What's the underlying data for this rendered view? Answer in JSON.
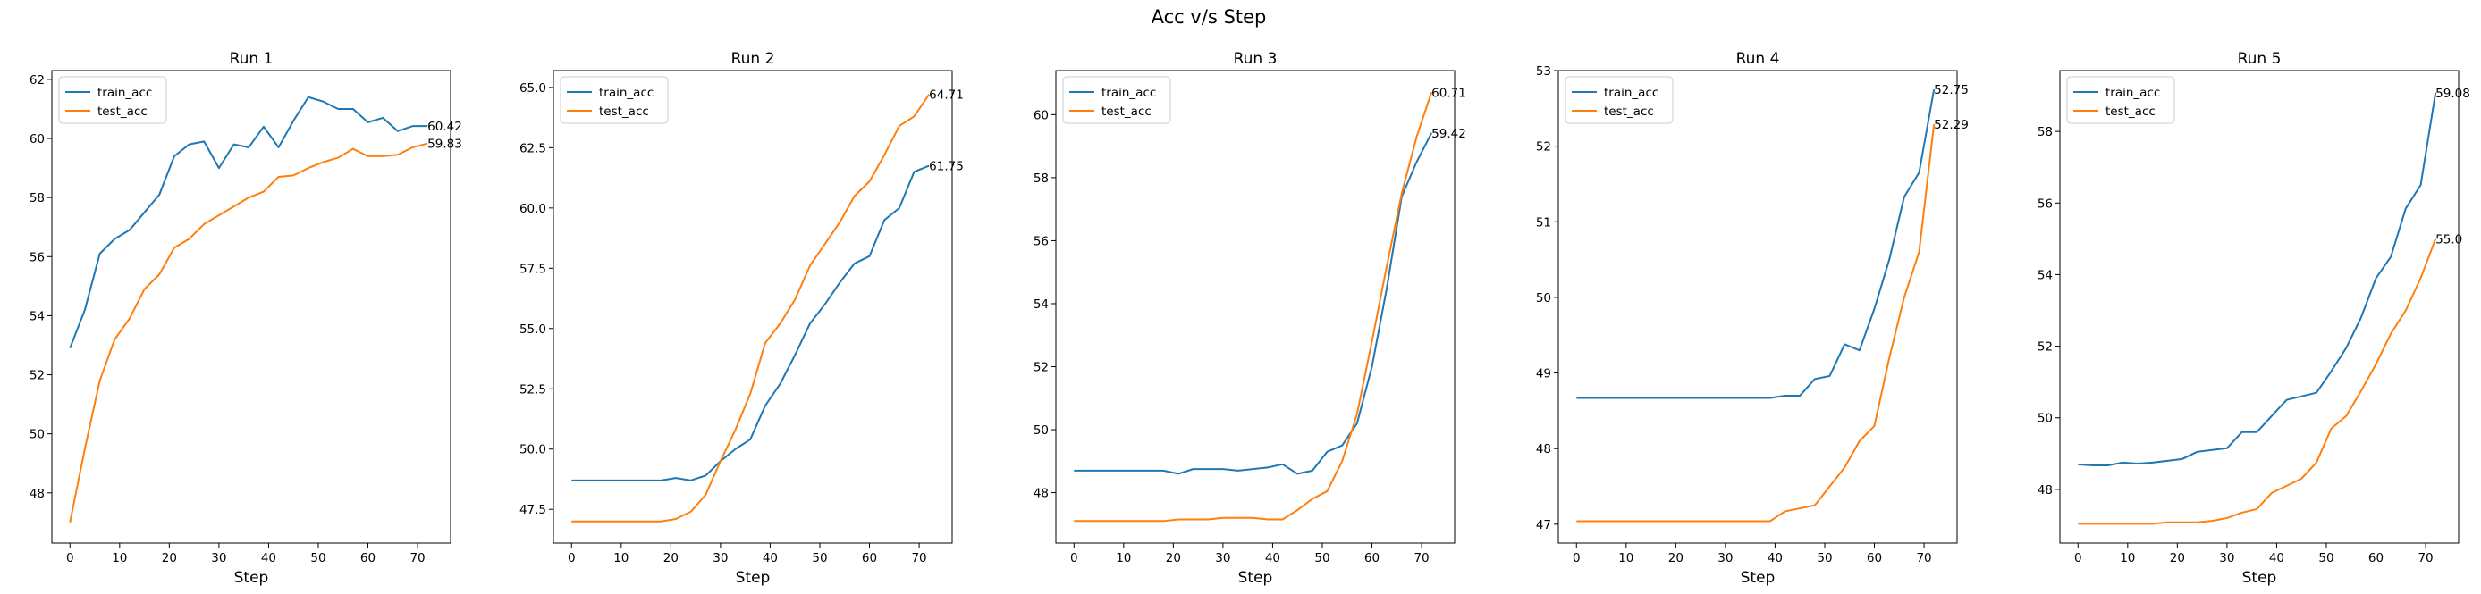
{
  "figure": {
    "title": "Acc v/s Step"
  },
  "colors": {
    "train_acc": "#1f77b4",
    "test_acc": "#ff7f0e"
  },
  "chart_data": [
    {
      "type": "line",
      "title": "Run 1",
      "xlabel": "Step",
      "ylabel": "",
      "xlim": [
        -3.65,
        76.65
      ],
      "ylim": [
        46.3,
        62.3
      ],
      "xticks": [
        0,
        10,
        20,
        30,
        40,
        50,
        60,
        70
      ],
      "yticks": [
        48,
        50,
        52,
        54,
        56,
        58,
        60,
        62
      ],
      "legend": "top-left",
      "grid": false,
      "x": [
        0,
        3,
        6,
        9,
        12,
        15,
        18,
        21,
        24,
        27,
        30,
        33,
        36,
        39,
        42,
        45,
        48,
        51,
        54,
        57,
        60,
        63,
        66,
        69,
        72
      ],
      "series": [
        {
          "name": "train_acc",
          "end_label": "60.42",
          "values": [
            52.9,
            54.2,
            56.1,
            56.6,
            56.9,
            57.5,
            58.1,
            59.4,
            59.8,
            59.9,
            59.0,
            59.8,
            59.7,
            60.4,
            59.7,
            60.6,
            61.4,
            61.25,
            61.0,
            61.0,
            60.55,
            60.7,
            60.25,
            60.42,
            60.42
          ]
        },
        {
          "name": "test_acc",
          "end_label": "59.83",
          "values": [
            47.0,
            49.5,
            51.8,
            53.2,
            53.9,
            54.9,
            55.4,
            56.3,
            56.6,
            57.1,
            57.4,
            57.7,
            58.0,
            58.2,
            58.7,
            58.75,
            59.0,
            59.2,
            59.35,
            59.65,
            59.4,
            59.4,
            59.45,
            59.7,
            59.83
          ]
        }
      ]
    },
    {
      "type": "line",
      "title": "Run 2",
      "xlabel": "Step",
      "ylabel": "",
      "xlim": [
        -3.65,
        76.65
      ],
      "ylim": [
        46.1,
        65.7
      ],
      "xticks": [
        0,
        10,
        20,
        30,
        40,
        50,
        60,
        70
      ],
      "yticks": [
        47.5,
        50.0,
        52.5,
        55.0,
        57.5,
        60.0,
        62.5,
        65.0
      ],
      "legend": "top-left",
      "grid": false,
      "x": [
        0,
        3,
        6,
        9,
        12,
        15,
        18,
        21,
        24,
        27,
        30,
        33,
        36,
        39,
        42,
        45,
        48,
        51,
        54,
        57,
        60,
        63,
        66,
        69,
        72
      ],
      "series": [
        {
          "name": "train_acc",
          "end_label": "61.75",
          "values": [
            48.7,
            48.7,
            48.7,
            48.7,
            48.7,
            48.7,
            48.7,
            48.8,
            48.7,
            48.9,
            49.5,
            50.0,
            50.4,
            51.8,
            52.7,
            53.9,
            55.2,
            56.0,
            56.9,
            57.7,
            58.0,
            59.5,
            60.0,
            61.5,
            61.75
          ]
        },
        {
          "name": "test_acc",
          "end_label": "64.71",
          "values": [
            47.0,
            47.0,
            47.0,
            47.0,
            47.0,
            47.0,
            47.0,
            47.1,
            47.4,
            48.1,
            49.5,
            50.8,
            52.3,
            54.4,
            55.2,
            56.2,
            57.6,
            58.5,
            59.4,
            60.5,
            61.1,
            62.2,
            63.4,
            63.8,
            64.71
          ]
        }
      ]
    },
    {
      "type": "line",
      "title": "Run 3",
      "xlabel": "Step",
      "ylabel": "",
      "xlim": [
        -3.65,
        76.65
      ],
      "ylim": [
        46.4,
        61.4
      ],
      "xticks": [
        0,
        10,
        20,
        30,
        40,
        50,
        60,
        70
      ],
      "yticks": [
        48,
        50,
        52,
        54,
        56,
        58,
        60
      ],
      "legend": "top-left",
      "grid": false,
      "x": [
        0,
        3,
        6,
        9,
        12,
        15,
        18,
        21,
        24,
        27,
        30,
        33,
        36,
        39,
        42,
        45,
        48,
        51,
        54,
        57,
        60,
        63,
        66,
        69,
        72
      ],
      "series": [
        {
          "name": "train_acc",
          "end_label": "59.42",
          "values": [
            48.7,
            48.7,
            48.7,
            48.7,
            48.7,
            48.7,
            48.7,
            48.6,
            48.75,
            48.75,
            48.75,
            48.7,
            48.75,
            48.8,
            48.9,
            48.6,
            48.7,
            49.3,
            49.5,
            50.2,
            52.0,
            54.5,
            57.4,
            58.5,
            59.42
          ]
        },
        {
          "name": "test_acc",
          "end_label": "60.71",
          "values": [
            47.1,
            47.1,
            47.1,
            47.1,
            47.1,
            47.1,
            47.1,
            47.15,
            47.15,
            47.15,
            47.2,
            47.2,
            47.2,
            47.15,
            47.15,
            47.45,
            47.8,
            48.05,
            49.0,
            50.5,
            52.8,
            55.2,
            57.5,
            59.3,
            60.71
          ]
        }
      ]
    },
    {
      "type": "line",
      "title": "Run 4",
      "xlabel": "Step",
      "ylabel": "",
      "xlim": [
        -3.65,
        76.65
      ],
      "ylim": [
        46.75,
        53.0
      ],
      "xticks": [
        0,
        10,
        20,
        30,
        40,
        50,
        60,
        70
      ],
      "yticks": [
        47,
        48,
        49,
        50,
        51,
        52,
        53
      ],
      "legend": "top-left",
      "grid": false,
      "x": [
        0,
        3,
        6,
        9,
        12,
        15,
        18,
        21,
        24,
        27,
        30,
        33,
        36,
        39,
        42,
        45,
        48,
        51,
        54,
        57,
        60,
        63,
        66,
        69,
        72
      ],
      "series": [
        {
          "name": "train_acc",
          "end_label": "52.75",
          "values": [
            48.67,
            48.67,
            48.67,
            48.67,
            48.67,
            48.67,
            48.67,
            48.67,
            48.67,
            48.67,
            48.67,
            48.67,
            48.67,
            48.67,
            48.7,
            48.7,
            48.92,
            48.96,
            49.38,
            49.3,
            49.85,
            50.5,
            51.33,
            51.65,
            52.75
          ]
        },
        {
          "name": "test_acc",
          "end_label": "52.29",
          "values": [
            47.04,
            47.04,
            47.04,
            47.04,
            47.04,
            47.04,
            47.04,
            47.04,
            47.04,
            47.04,
            47.04,
            47.04,
            47.04,
            47.04,
            47.17,
            47.21,
            47.25,
            47.5,
            47.75,
            48.1,
            48.3,
            49.2,
            50.0,
            50.6,
            52.29
          ]
        }
      ]
    },
    {
      "type": "line",
      "title": "Run 5",
      "xlabel": "Step",
      "ylabel": "",
      "xlim": [
        -3.65,
        76.65
      ],
      "ylim": [
        46.5,
        59.7
      ],
      "xticks": [
        0,
        10,
        20,
        30,
        40,
        50,
        60,
        70
      ],
      "yticks": [
        48,
        50,
        52,
        54,
        56,
        58
      ],
      "legend": "top-left",
      "grid": false,
      "x": [
        0,
        3,
        6,
        9,
        12,
        15,
        18,
        21,
        24,
        27,
        30,
        33,
        36,
        39,
        42,
        45,
        48,
        51,
        54,
        57,
        60,
        63,
        66,
        69,
        72
      ],
      "series": [
        {
          "name": "train_acc",
          "end_label": "59.08",
          "values": [
            48.7,
            48.67,
            48.67,
            48.75,
            48.72,
            48.75,
            48.8,
            48.85,
            49.05,
            49.1,
            49.15,
            49.6,
            49.6,
            50.05,
            50.5,
            50.6,
            50.7,
            51.3,
            51.95,
            52.8,
            53.9,
            54.5,
            55.85,
            56.5,
            59.08
          ]
        },
        {
          "name": "test_acc",
          "end_label": "55.0",
          "values": [
            47.04,
            47.04,
            47.04,
            47.04,
            47.04,
            47.04,
            47.08,
            47.08,
            47.08,
            47.12,
            47.2,
            47.35,
            47.45,
            47.9,
            48.1,
            48.3,
            48.75,
            49.7,
            50.05,
            50.75,
            51.5,
            52.35,
            53.0,
            53.9,
            55.0
          ]
        }
      ]
    }
  ]
}
